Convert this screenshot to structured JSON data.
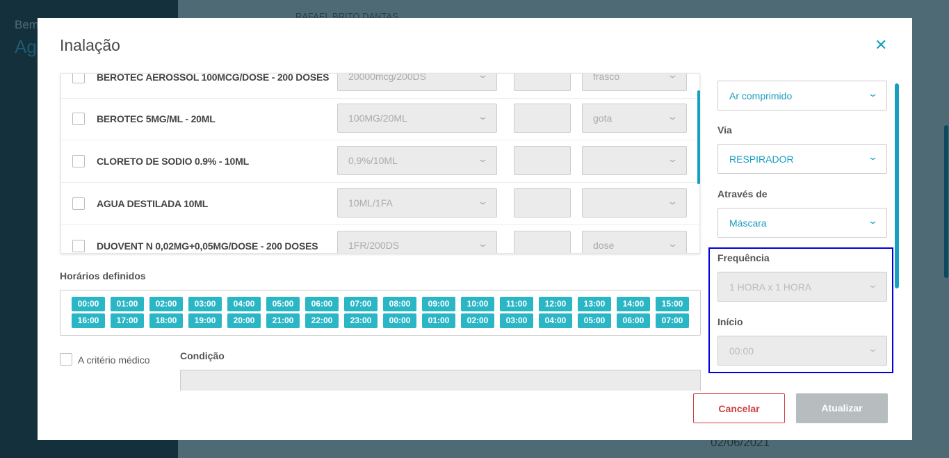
{
  "background": {
    "sidebar_line1": "Bem",
    "sidebar_line2": "Ag",
    "patient_name": "RAFAEL BRITO DANTAS",
    "date": "02/06/2021"
  },
  "modal": {
    "title": "Inalação",
    "medications": [
      {
        "name": "BEROTEC AEROSSOL 100MCG/DOSE - 200 DOSES",
        "presentation": "20000mcg/200DS",
        "quantity": "",
        "unit": "frasco"
      },
      {
        "name": "BEROTEC 5MG/ML - 20ML",
        "presentation": "100MG/20ML",
        "quantity": "",
        "unit": "gota"
      },
      {
        "name": "CLORETO DE SODIO 0.9% - 10ML",
        "presentation": "0,9%/10ML",
        "quantity": "",
        "unit": ""
      },
      {
        "name": "AGUA DESTILADA 10ML",
        "presentation": "10ML/1FA",
        "quantity": "",
        "unit": ""
      },
      {
        "name": "DUOVENT N 0,02MG+0,05MG/DOSE - 200 DOSES",
        "presentation": "1FR/200DS",
        "quantity": "",
        "unit": "dose"
      }
    ],
    "schedules_label": "Horários definidos",
    "schedules": [
      "00:00",
      "01:00",
      "02:00",
      "03:00",
      "04:00",
      "05:00",
      "06:00",
      "07:00",
      "08:00",
      "09:00",
      "10:00",
      "11:00",
      "12:00",
      "13:00",
      "14:00",
      "15:00",
      "16:00",
      "17:00",
      "18:00",
      "19:00",
      "20:00",
      "21:00",
      "22:00",
      "23:00",
      "00:00",
      "01:00",
      "02:00",
      "03:00",
      "04:00",
      "05:00",
      "06:00",
      "07:00"
    ],
    "criteria_label": "A critério médico",
    "condition_label": "Condição",
    "right": {
      "gas_value": "Ar comprimido",
      "via_label": "Via",
      "via_value": "RESPIRADOR",
      "through_label": "Através de",
      "through_value": "Máscara",
      "frequency_label": "Frequência",
      "frequency_value": "1 HORA x 1 HORA",
      "start_label": "Início",
      "start_value": "00:00"
    },
    "cancel_label": "Cancelar",
    "update_label": "Atualizar",
    "accent": "#1a9ec0"
  }
}
